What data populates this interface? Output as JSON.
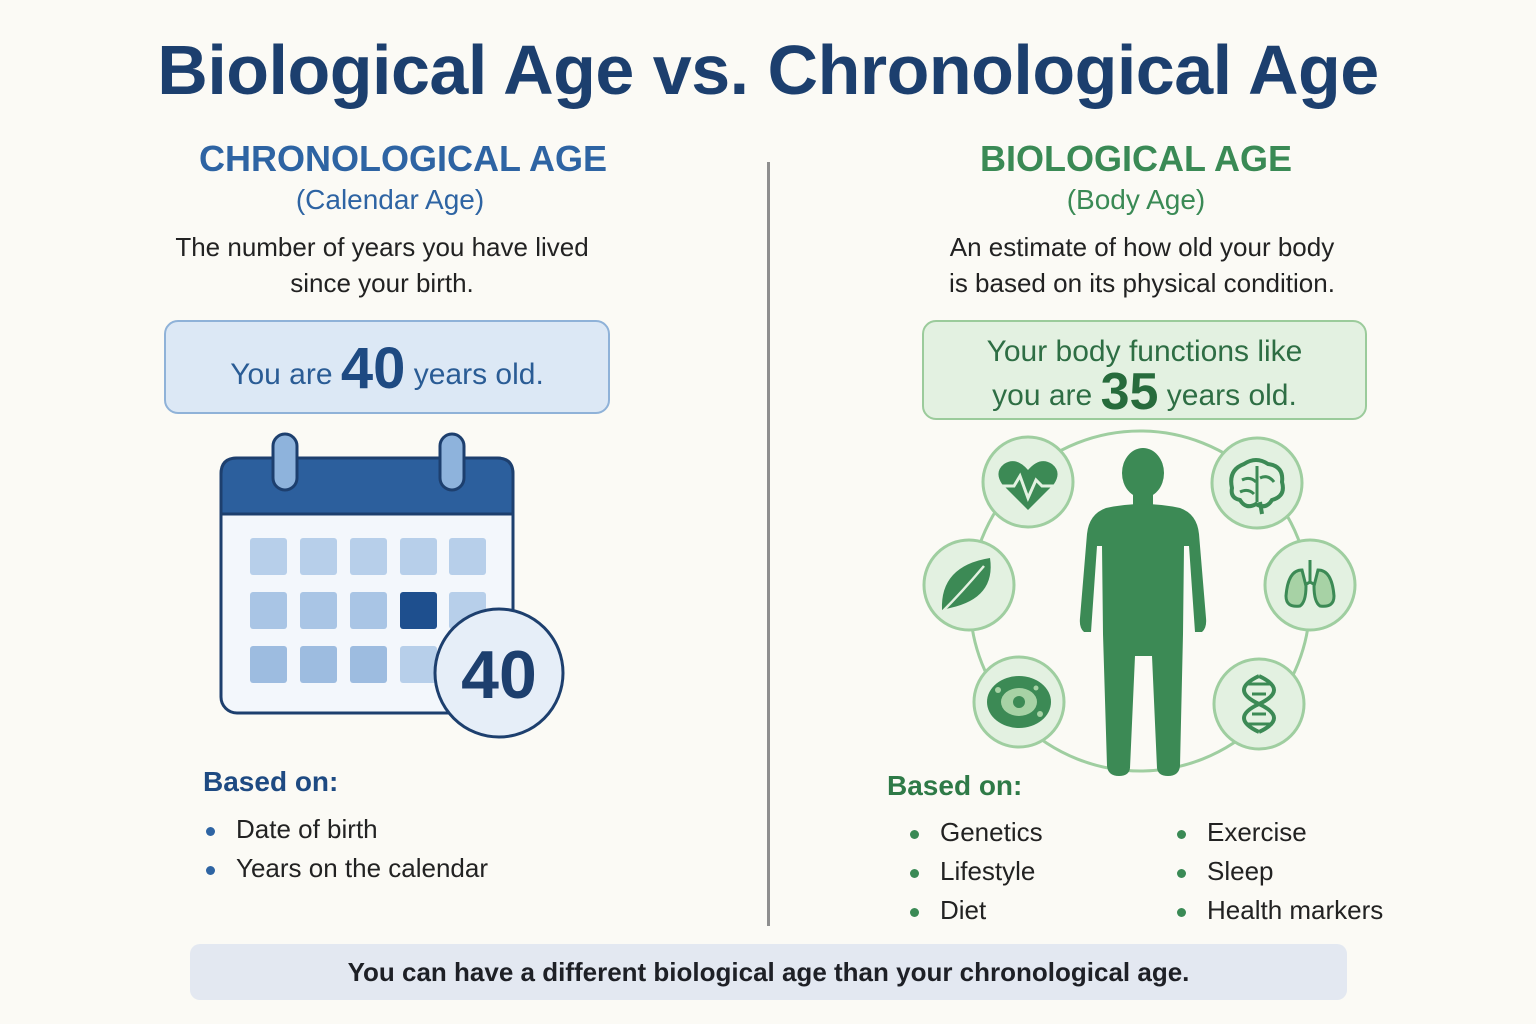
{
  "title": "Biological Age vs. Chronological Age",
  "chronological": {
    "heading": "CHRONOLOGICAL AGE",
    "subheading": "(Calendar Age)",
    "description_line1": "The number of years you have lived",
    "description_line2": "since your birth.",
    "age_prefix": "You are",
    "age_value": "40",
    "age_suffix": "years old.",
    "calendar_badge": "40",
    "based_on_title": "Based on:",
    "based_on": [
      "Date of birth",
      "Years on the calendar"
    ]
  },
  "biological": {
    "heading": "BIOLOGICAL AGE",
    "subheading": "(Body Age)",
    "description_line1": "An estimate of how old your body",
    "description_line2": "is based on its physical condition.",
    "age_line1": "Your body functions like",
    "age_prefix": "you are",
    "age_value": "35",
    "age_suffix": "years old.",
    "icons": [
      "heart-icon",
      "brain-icon",
      "leaf-icon",
      "lungs-icon",
      "cell-icon",
      "dna-icon"
    ],
    "based_on_title": "Based on:",
    "based_on_col1": [
      "Genetics",
      "Lifestyle",
      "Diet"
    ],
    "based_on_col2": [
      "Exercise",
      "Sleep",
      "Health markers"
    ]
  },
  "footer": "You can have a different biological age than your chronological age.",
  "colors": {
    "navy": "#1c3f6e",
    "blue": "#2e64a3",
    "green": "#3a8a55",
    "background": "#fbfaf5"
  }
}
